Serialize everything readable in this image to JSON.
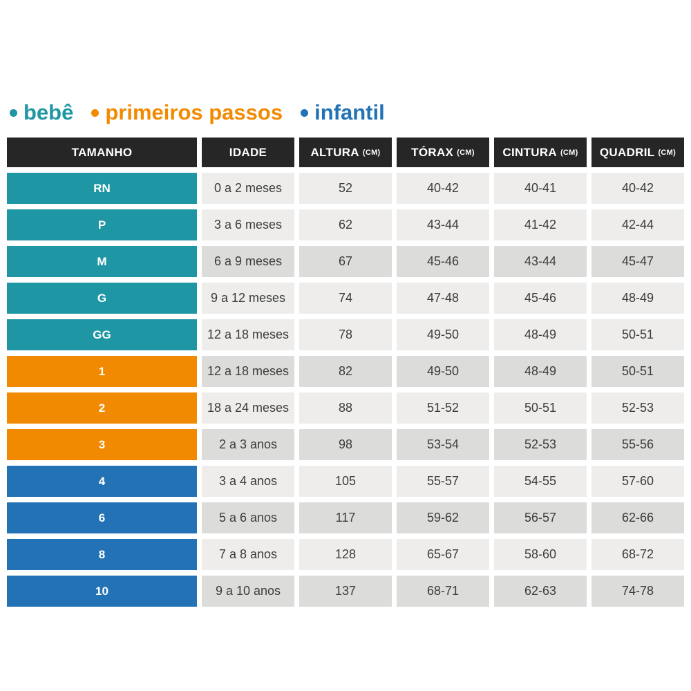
{
  "colors": {
    "bebe": "#1F96A3",
    "primeiros_passos": "#F18A00",
    "infantil": "#2272B5",
    "header_bg": "#262626",
    "header_text": "#FFFFFF",
    "row_light": "#EEEDEB",
    "row_dark": "#DCDCDA",
    "cell_text": "#3C3C3C",
    "page_bg": "#FFFFFF"
  },
  "legend": {
    "items": [
      {
        "label": "bebê",
        "color_key": "bebe"
      },
      {
        "label": "primeiros passos",
        "color_key": "primeiros_passos"
      },
      {
        "label": "infantil",
        "color_key": "infantil"
      }
    ]
  },
  "chart_data": {
    "type": "table",
    "title": "",
    "columns": [
      {
        "label": "TAMANHO",
        "unit": ""
      },
      {
        "label": "IDADE",
        "unit": ""
      },
      {
        "label": "ALTURA",
        "unit": "(CM)"
      },
      {
        "label": "TÓRAX",
        "unit": "(CM)"
      },
      {
        "label": "CINTURA",
        "unit": "(CM)"
      },
      {
        "label": "QUADRIL",
        "unit": "(CM)"
      }
    ],
    "rows": [
      {
        "size": "RN",
        "category": "bebe",
        "shade": "light",
        "idade": "0 a 2 meses",
        "altura": "52",
        "torax": "40-42",
        "cintura": "40-41",
        "quadril": "40-42"
      },
      {
        "size": "P",
        "category": "bebe",
        "shade": "light",
        "idade": "3 a 6 meses",
        "altura": "62",
        "torax": "43-44",
        "cintura": "41-42",
        "quadril": "42-44"
      },
      {
        "size": "M",
        "category": "bebe",
        "shade": "dark",
        "idade": "6 a 9 meses",
        "altura": "67",
        "torax": "45-46",
        "cintura": "43-44",
        "quadril": "45-47"
      },
      {
        "size": "G",
        "category": "bebe",
        "shade": "light",
        "idade": "9 a 12 meses",
        "altura": "74",
        "torax": "47-48",
        "cintura": "45-46",
        "quadril": "48-49"
      },
      {
        "size": "GG",
        "category": "bebe",
        "shade": "light",
        "idade": "12 a 18 meses",
        "altura": "78",
        "torax": "49-50",
        "cintura": "48-49",
        "quadril": "50-51"
      },
      {
        "size": "1",
        "category": "primeiros_passos",
        "shade": "dark",
        "idade": "12 a 18 meses",
        "altura": "82",
        "torax": "49-50",
        "cintura": "48-49",
        "quadril": "50-51"
      },
      {
        "size": "2",
        "category": "primeiros_passos",
        "shade": "light",
        "idade": "18 a 24 meses",
        "altura": "88",
        "torax": "51-52",
        "cintura": "50-51",
        "quadril": "52-53"
      },
      {
        "size": "3",
        "category": "primeiros_passos",
        "shade": "dark",
        "idade": "2 a 3 anos",
        "altura": "98",
        "torax": "53-54",
        "cintura": "52-53",
        "quadril": "55-56"
      },
      {
        "size": "4",
        "category": "infantil",
        "shade": "light",
        "idade": "3 a 4 anos",
        "altura": "105",
        "torax": "55-57",
        "cintura": "54-55",
        "quadril": "57-60"
      },
      {
        "size": "6",
        "category": "infantil",
        "shade": "dark",
        "idade": "5 a 6 anos",
        "altura": "117",
        "torax": "59-62",
        "cintura": "56-57",
        "quadril": "62-66"
      },
      {
        "size": "8",
        "category": "infantil",
        "shade": "light",
        "idade": "7 a 8 anos",
        "altura": "128",
        "torax": "65-67",
        "cintura": "58-60",
        "quadril": "68-72"
      },
      {
        "size": "10",
        "category": "infantil",
        "shade": "dark",
        "idade": "9 a 10 anos",
        "altura": "137",
        "torax": "68-71",
        "cintura": "62-63",
        "quadril": "74-78"
      }
    ]
  }
}
